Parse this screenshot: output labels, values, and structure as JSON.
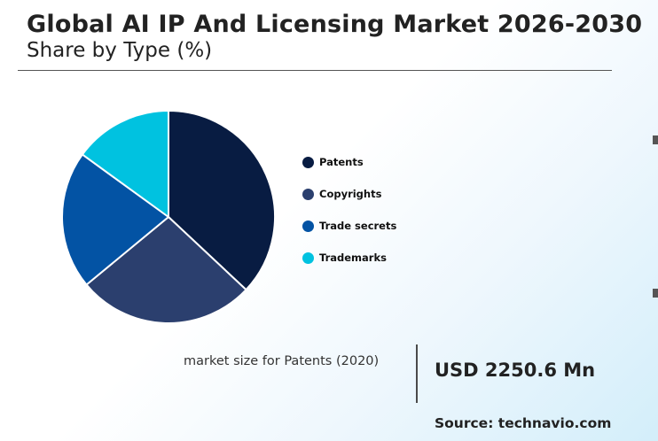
{
  "header": {
    "title": "Global AI IP And Licensing Market 2026-2030",
    "subtitle": "Share by Type (%)"
  },
  "chart_data": {
    "type": "pie",
    "categories": [
      "Patents",
      "Copyrights",
      "Trade secrets",
      "Trademarks"
    ],
    "values": [
      37,
      27,
      21,
      15
    ],
    "colors": [
      "#081c42",
      "#2b3f6e",
      "#0353a4",
      "#00c2e0"
    ],
    "legend_position": "right"
  },
  "footer": {
    "market_size_label": "market size for Patents (2020)",
    "market_size_value": "USD 2250.6 Mn",
    "source": "Source: technavio.com"
  }
}
